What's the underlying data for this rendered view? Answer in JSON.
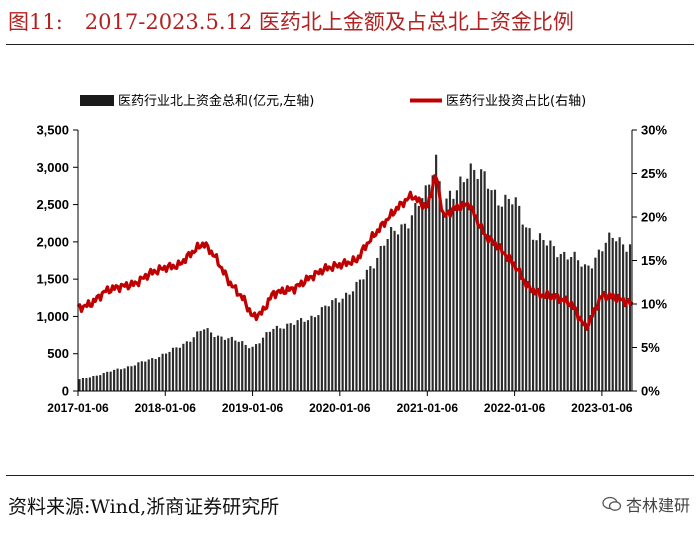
{
  "header": {
    "figure_label": "图11:",
    "title": "2017-2023.5.12 医药北上金额及占总北上资金比例"
  },
  "footer": {
    "source": "资料来源:Wind,浙商证券研究所",
    "watermark": "杏林建研",
    "watermark_icon": "wechat-icon"
  },
  "chart_data": {
    "type": "bar+line",
    "x_ticks": [
      "2017-01-06",
      "2018-01-06",
      "2019-01-06",
      "2020-01-06",
      "2021-01-06",
      "2022-01-06",
      "2023-01-06"
    ],
    "x_range": [
      "2017-01-06",
      "2023-05-12"
    ],
    "y_left": {
      "range": [
        0,
        3500
      ],
      "ticks": [
        "0",
        "500",
        "1,000",
        "1,500",
        "2,000",
        "2,500",
        "3,000",
        "3,500"
      ]
    },
    "y_right": {
      "range": [
        0,
        30
      ],
      "ticks": [
        "0%",
        "5%",
        "10%",
        "15%",
        "20%",
        "25%",
        "30%"
      ]
    },
    "legend_position": "top",
    "series": [
      {
        "name": "医药行业北上资金总和(亿元,左轴)",
        "kind": "bar",
        "axis": "left",
        "color": "#1a1a1a",
        "points": [
          [
            "2017-01-06",
            150
          ],
          [
            "2017-03-01",
            190
          ],
          [
            "2017-05-01",
            240
          ],
          [
            "2017-07-01",
            300
          ],
          [
            "2017-09-01",
            350
          ],
          [
            "2017-11-01",
            420
          ],
          [
            "2018-01-06",
            500
          ],
          [
            "2018-03-01",
            580
          ],
          [
            "2018-05-01",
            720
          ],
          [
            "2018-06-15",
            830
          ],
          [
            "2018-08-01",
            760
          ],
          [
            "2018-10-01",
            700
          ],
          [
            "2018-12-01",
            640
          ],
          [
            "2019-01-06",
            590
          ],
          [
            "2019-02-15",
            680
          ],
          [
            "2019-04-01",
            840
          ],
          [
            "2019-05-15",
            880
          ],
          [
            "2019-07-01",
            900
          ],
          [
            "2019-09-01",
            980
          ],
          [
            "2019-11-01",
            1100
          ],
          [
            "2020-01-06",
            1250
          ],
          [
            "2020-03-15",
            1380
          ],
          [
            "2020-05-01",
            1600
          ],
          [
            "2020-07-15",
            2000
          ],
          [
            "2020-09-01",
            2150
          ],
          [
            "2020-11-01",
            2350
          ],
          [
            "2021-01-06",
            2650
          ],
          [
            "2021-02-10",
            3220
          ],
          [
            "2021-03-15",
            2500
          ],
          [
            "2021-05-01",
            2600
          ],
          [
            "2021-06-30",
            3050
          ],
          [
            "2021-09-01",
            2820
          ],
          [
            "2021-11-01",
            2600
          ],
          [
            "2022-01-06",
            2520
          ],
          [
            "2022-03-01",
            2200
          ],
          [
            "2022-05-01",
            2000
          ],
          [
            "2022-07-01",
            1900
          ],
          [
            "2022-09-01",
            1800
          ],
          [
            "2022-10-31",
            1650
          ],
          [
            "2023-01-06",
            1900
          ],
          [
            "2023-03-01",
            2080
          ],
          [
            "2023-05-12",
            1930
          ]
        ]
      },
      {
        "name": "医药行业投资占比(右轴)",
        "kind": "line",
        "axis": "right",
        "color": "#c00000",
        "points": [
          [
            "2017-01-06",
            9.5
          ],
          [
            "2017-03-01",
            10.0
          ],
          [
            "2017-05-01",
            11.5
          ],
          [
            "2017-07-01",
            12.0
          ],
          [
            "2017-09-01",
            12.3
          ],
          [
            "2017-11-01",
            13.5
          ],
          [
            "2018-01-06",
            14.2
          ],
          [
            "2018-03-01",
            14.4
          ],
          [
            "2018-05-01",
            16.0
          ],
          [
            "2018-06-15",
            17.0
          ],
          [
            "2018-08-01",
            15.5
          ],
          [
            "2018-10-01",
            12.5
          ],
          [
            "2018-12-01",
            10.5
          ],
          [
            "2019-01-06",
            8.5
          ],
          [
            "2019-02-15",
            9.0
          ],
          [
            "2019-04-01",
            11.2
          ],
          [
            "2019-05-15",
            11.5
          ],
          [
            "2019-07-01",
            11.8
          ],
          [
            "2019-09-01",
            13.0
          ],
          [
            "2019-11-01",
            14.0
          ],
          [
            "2020-01-06",
            14.5
          ],
          [
            "2020-03-15",
            15.0
          ],
          [
            "2020-05-01",
            17.0
          ],
          [
            "2020-07-15",
            19.5
          ],
          [
            "2020-09-01",
            21.0
          ],
          [
            "2020-11-01",
            22.5
          ],
          [
            "2021-01-06",
            21.0
          ],
          [
            "2021-02-10",
            25.0
          ],
          [
            "2021-03-15",
            20.0
          ],
          [
            "2021-05-01",
            21.0
          ],
          [
            "2021-06-30",
            21.5
          ],
          [
            "2021-09-01",
            18.0
          ],
          [
            "2021-11-01",
            16.5
          ],
          [
            "2022-01-06",
            14.5
          ],
          [
            "2022-03-01",
            12.0
          ],
          [
            "2022-05-01",
            11.0
          ],
          [
            "2022-07-01",
            10.8
          ],
          [
            "2022-09-01",
            10.0
          ],
          [
            "2022-10-31",
            7.2
          ],
          [
            "2023-01-06",
            11.0
          ],
          [
            "2023-03-01",
            10.8
          ],
          [
            "2023-05-12",
            10.0
          ]
        ]
      }
    ]
  }
}
